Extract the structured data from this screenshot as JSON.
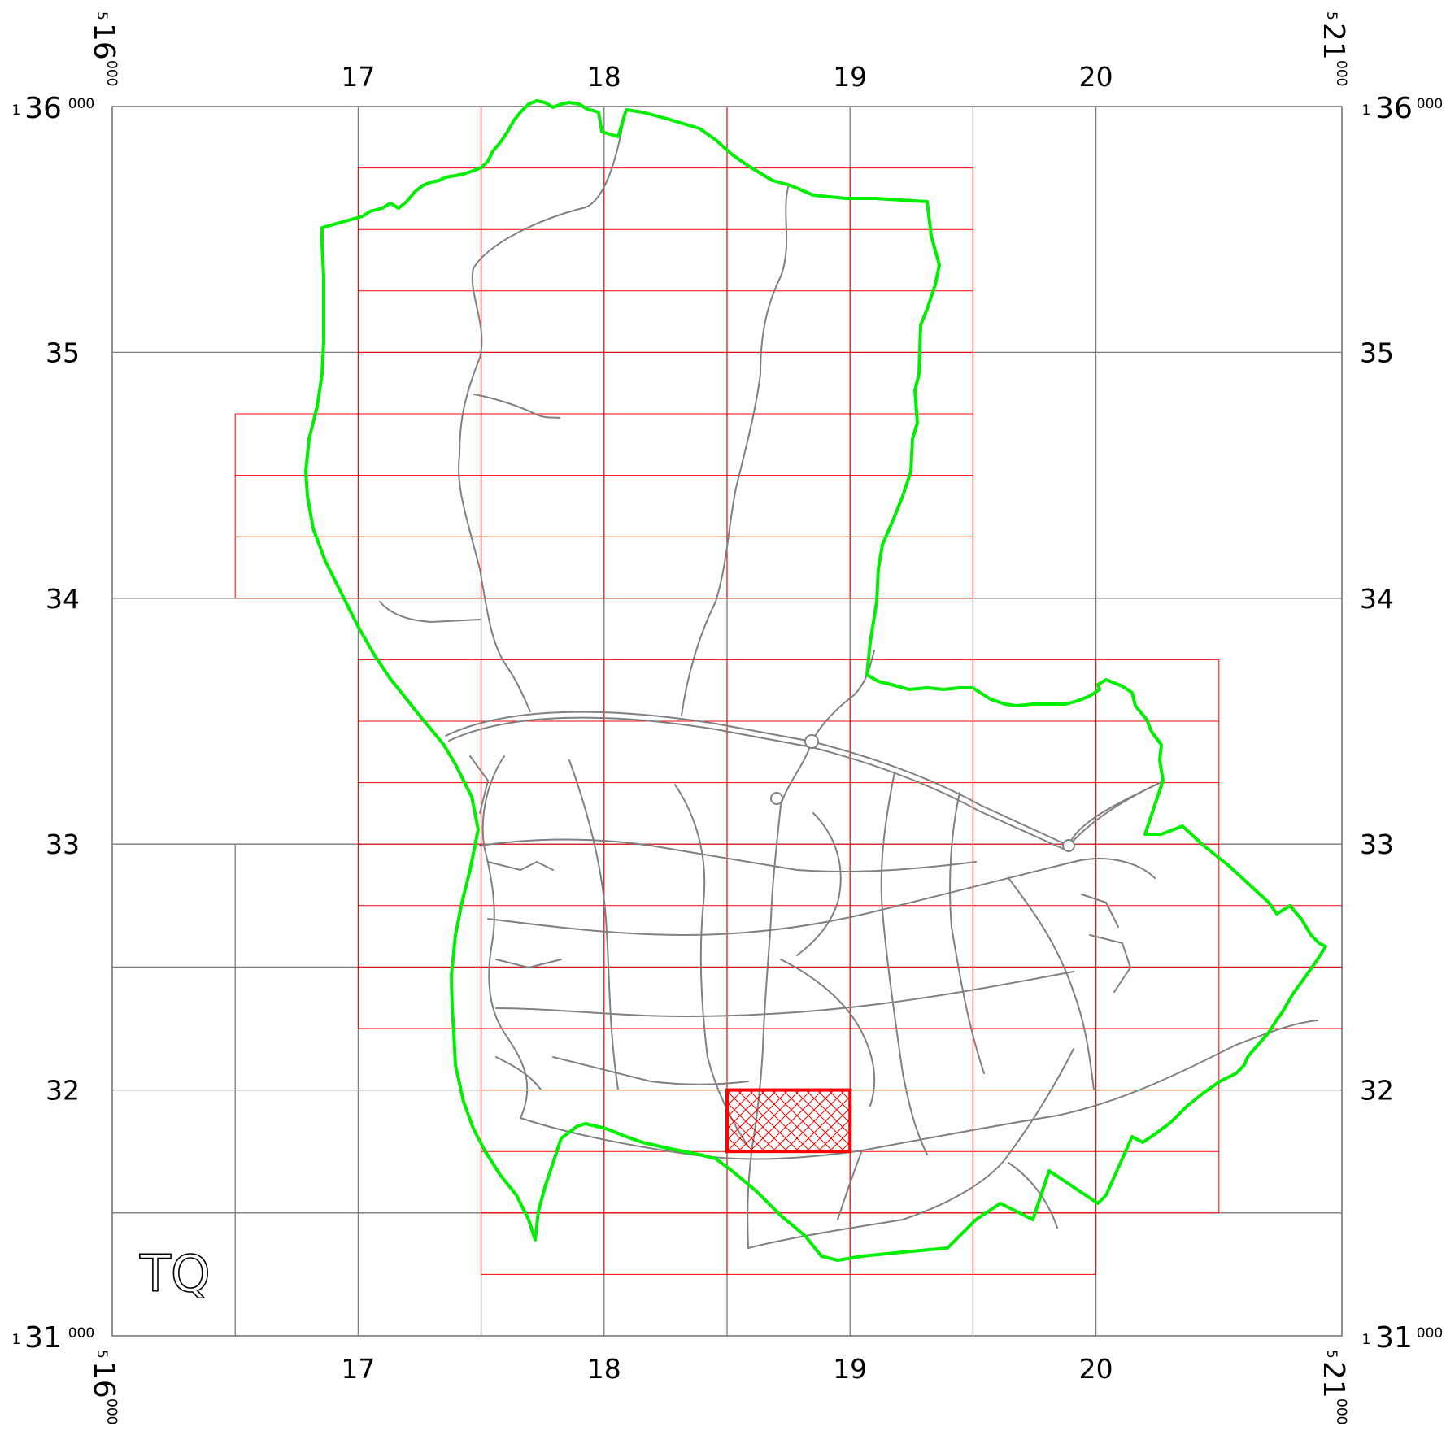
{
  "map": {
    "grid_letters": "TQ",
    "eastings": {
      "min": 16,
      "max": 21,
      "labels": [
        "17",
        "18",
        "19",
        "20"
      ],
      "corner_left": {
        "super": "5",
        "main": "16",
        "sub": "000"
      },
      "corner_right": {
        "super": "5",
        "main": "21",
        "sub": "000"
      }
    },
    "northings": {
      "min": 31,
      "max": 36,
      "labels": [
        "35",
        "34",
        "33",
        "32"
      ],
      "corner_top": {
        "super": "1",
        "main": "36",
        "sub": "000"
      },
      "corner_bottom": {
        "super": "1",
        "main": "31",
        "sub": "000"
      }
    },
    "colors": {
      "frame": "#6e6e6e",
      "grid": "#7a7a7a",
      "tiles": "#ff0000",
      "boundary": "#00ee00",
      "roads": "#808080",
      "highlight": "#ff0000"
    },
    "highlighted_tile": {
      "e_min": 18.5,
      "e_max": 19.0,
      "n_min": 31.75,
      "n_max": 32.0,
      "pattern": "crosshatch"
    }
  }
}
